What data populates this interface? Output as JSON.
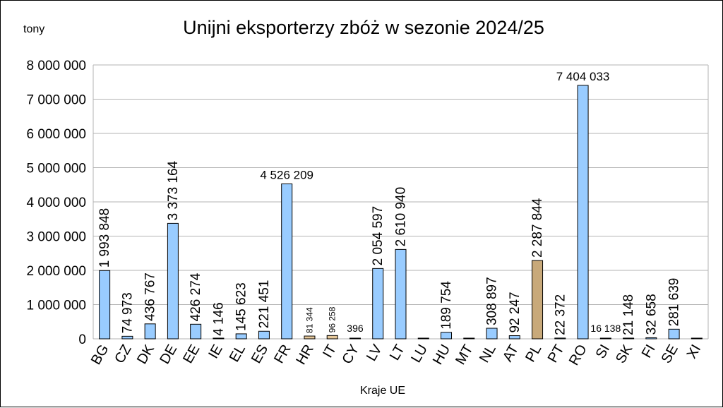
{
  "chart_data": {
    "type": "bar",
    "title": "Unijni eksporterzy zbóż w sezonie 2024/25",
    "ylabel": "tony",
    "xlabel": "Kraje UE",
    "ylim": [
      0,
      8000000
    ],
    "yticks": [
      0,
      1000000,
      2000000,
      3000000,
      4000000,
      5000000,
      6000000,
      7000000,
      8000000
    ],
    "ytick_labels": [
      "0",
      "1 000 000",
      "2 000 000",
      "3 000 000",
      "4 000 000",
      "5 000 000",
      "6 000 000",
      "7 000 000",
      "8 000 000"
    ],
    "grid": "horizontal",
    "colors": {
      "default": "#99CCFF",
      "small": "#E6C89A",
      "highlight": "#C8A97A",
      "highlight_label": "#E6007E"
    },
    "categories": [
      "BG",
      "CZ",
      "DK",
      "DE",
      "EE",
      "IE",
      "EL",
      "ES",
      "FR",
      "HR",
      "IT",
      "CY",
      "LV",
      "LT",
      "LU",
      "HU",
      "MT",
      "NL",
      "AT",
      "PL",
      "PT",
      "RO",
      "SI",
      "SK",
      "FI",
      "SE",
      "XI"
    ],
    "values": [
      1993848,
      74973,
      436767,
      3373164,
      426274,
      4146,
      145623,
      221451,
      4526209,
      81344,
      96258,
      396,
      2054597,
      2610940,
      0,
      189754,
      0,
      308897,
      92247,
      2287844,
      22372,
      7404033,
      16138,
      21148,
      32658,
      281639,
      0
    ],
    "data_labels": [
      "1 993 848",
      "74 973",
      "436 767",
      "3 373 164",
      "426 274",
      "4 146",
      "145 623",
      "221 451",
      "4 526 209",
      "81 344",
      "96 258",
      "396",
      "2 054 597",
      "2 610 940",
      "",
      "189 754",
      "",
      "308 897",
      "92 247",
      "2 287 844",
      "22 372",
      "7 404 033",
      "16 138",
      "21 148",
      "32 658",
      "281 639",
      ""
    ]
  }
}
